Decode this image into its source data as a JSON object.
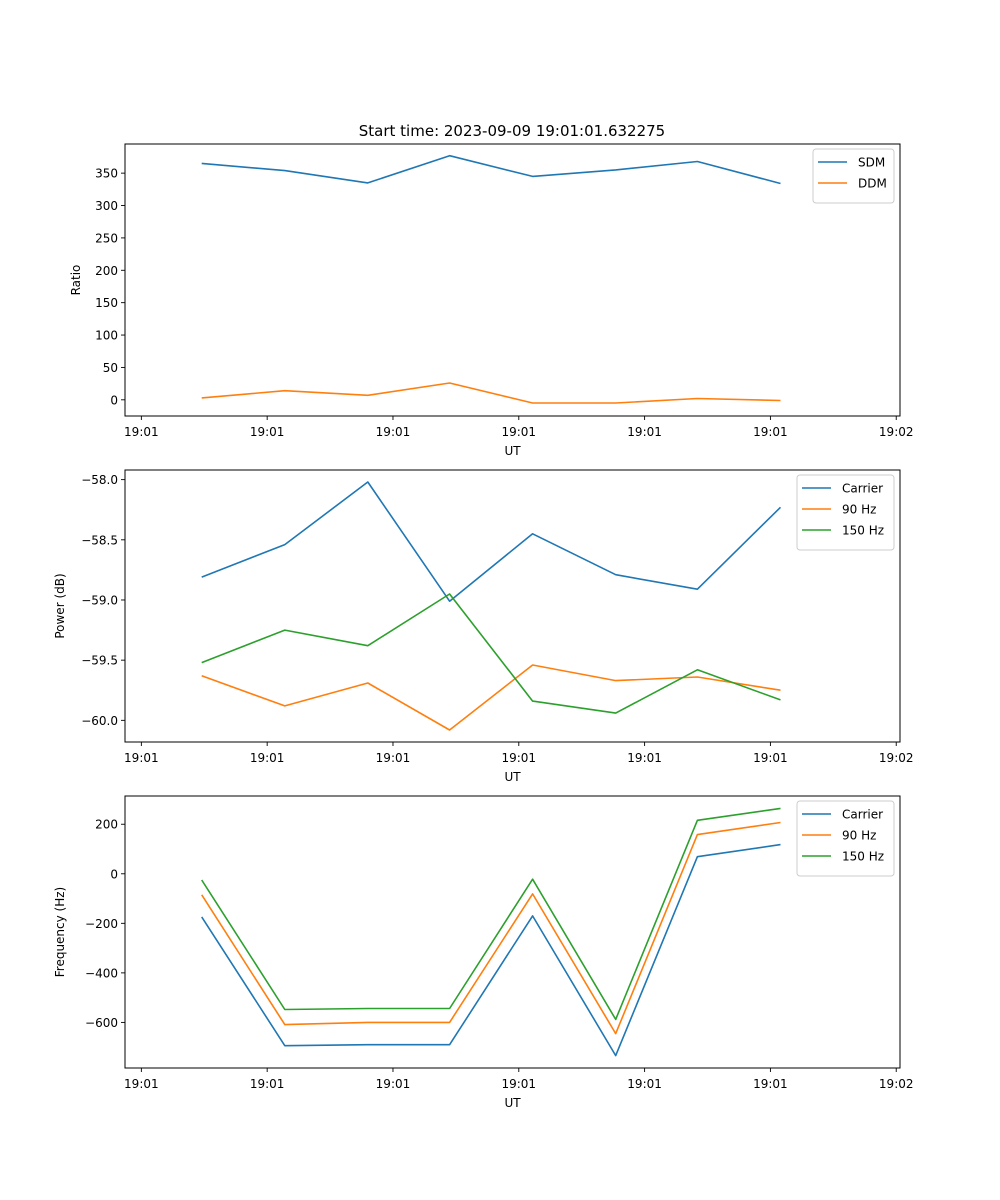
{
  "title": "Start time: 2023-09-09 19:01:01.632275",
  "chart_data": [
    {
      "type": "line",
      "title": "Start time: 2023-09-09 19:01:01.632275",
      "xlabel": "UT",
      "ylabel": "Ratio",
      "x_unit": "seconds after 19:01:00",
      "x": [
        4.8,
        11.4,
        18.0,
        24.5,
        31.1,
        37.7,
        44.2,
        50.8
      ],
      "xlim": [
        -1.3,
        60.3
      ],
      "xticks": [
        0,
        10,
        20,
        30,
        40,
        50,
        60
      ],
      "xtick_labels": [
        "19:01",
        "19:01",
        "19:01",
        "19:01",
        "19:01",
        "19:01",
        "19:02"
      ],
      "ylim": [
        -25,
        395
      ],
      "yticks": [
        0,
        50,
        100,
        150,
        200,
        250,
        300,
        350
      ],
      "ytick_labels": [
        "0",
        "50",
        "100",
        "150",
        "200",
        "250",
        "300",
        "350"
      ],
      "legend_position": "top-right",
      "grid": false,
      "series": [
        {
          "name": "SDM",
          "color": "#1f77b4",
          "values": [
            365,
            354,
            335,
            377,
            345,
            355,
            368,
            334
          ]
        },
        {
          "name": "DDM",
          "color": "#ff7f0e",
          "values": [
            3,
            14,
            7,
            26,
            -5,
            -5,
            2,
            -1
          ]
        }
      ]
    },
    {
      "type": "line",
      "title": "",
      "xlabel": "UT",
      "ylabel": "Power (dB)",
      "x_unit": "seconds after 19:01:00",
      "x": [
        4.8,
        11.4,
        18.0,
        24.5,
        31.1,
        37.7,
        44.2,
        50.8
      ],
      "xlim": [
        -1.3,
        60.3
      ],
      "xticks": [
        0,
        10,
        20,
        30,
        40,
        50,
        60
      ],
      "xtick_labels": [
        "19:01",
        "19:01",
        "19:01",
        "19:01",
        "19:01",
        "19:01",
        "19:02"
      ],
      "ylim": [
        -60.18,
        -57.92
      ],
      "yticks": [
        -60.0,
        -59.5,
        -59.0,
        -58.5,
        -58.0
      ],
      "ytick_labels": [
        "−60.0",
        "−59.5",
        "−59.0",
        "−58.5",
        "−58.0"
      ],
      "legend_position": "top-right",
      "grid": false,
      "series": [
        {
          "name": "Carrier",
          "color": "#1f77b4",
          "values": [
            -58.81,
            -58.54,
            -58.02,
            -59.01,
            -58.45,
            -58.79,
            -58.91,
            -58.23
          ]
        },
        {
          "name": "90 Hz",
          "color": "#ff7f0e",
          "values": [
            -59.63,
            -59.88,
            -59.69,
            -60.08,
            -59.54,
            -59.67,
            -59.64,
            -59.75
          ]
        },
        {
          "name": "150 Hz",
          "color": "#2ca02c",
          "values": [
            -59.52,
            -59.25,
            -59.38,
            -58.95,
            -59.84,
            -59.94,
            -59.58,
            -59.83
          ]
        }
      ]
    },
    {
      "type": "line",
      "title": "",
      "xlabel": "UT",
      "ylabel": "Frequency (Hz)",
      "x_unit": "seconds after 19:01:00",
      "x": [
        4.8,
        11.4,
        18.0,
        24.5,
        31.1,
        37.7,
        44.2,
        50.8
      ],
      "xlim": [
        -1.3,
        60.3
      ],
      "xticks": [
        0,
        10,
        20,
        30,
        40,
        50,
        60
      ],
      "xtick_labels": [
        "19:01",
        "19:01",
        "19:01",
        "19:01",
        "19:01",
        "19:01",
        "19:02"
      ],
      "ylim": [
        -784,
        314
      ],
      "yticks": [
        -600,
        -400,
        -200,
        0,
        200
      ],
      "ytick_labels": [
        "−600",
        "−400",
        "−200",
        "0",
        "200"
      ],
      "legend_position": "top-right",
      "grid": false,
      "series": [
        {
          "name": "Carrier",
          "color": "#1f77b4",
          "values": [
            -174,
            -694,
            -690,
            -690,
            -170,
            -734,
            69,
            118
          ]
        },
        {
          "name": "90 Hz",
          "color": "#ff7f0e",
          "values": [
            -85,
            -609,
            -600,
            -600,
            -81,
            -645,
            158,
            207
          ]
        },
        {
          "name": "150 Hz",
          "color": "#2ca02c",
          "values": [
            -25,
            -548,
            -544,
            -544,
            -22,
            -588,
            216,
            264
          ]
        }
      ]
    }
  ]
}
